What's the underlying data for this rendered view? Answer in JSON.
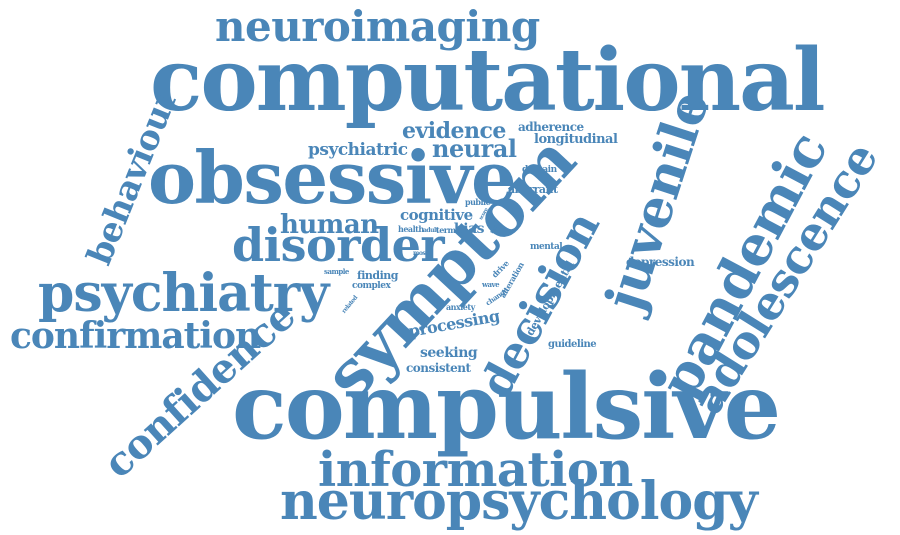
{
  "words": [
    {
      "name": "word-neuroimaging",
      "text": "neuroimaging",
      "color": "#4a86b8"
    },
    {
      "name": "word-computational",
      "text": "computational",
      "color": "#4a86b8"
    },
    {
      "name": "word-behaviour",
      "text": "behaviour",
      "color": "#4a86b8"
    },
    {
      "name": "word-obsessive",
      "text": "obsessive",
      "color": "#4a86b8"
    },
    {
      "name": "word-evidence",
      "text": "evidence",
      "color": "#4a86b8"
    },
    {
      "name": "word-adherence",
      "text": "adherence",
      "color": "#4a86b8"
    },
    {
      "name": "word-longitudinal",
      "text": "longitudinal",
      "color": "#4a86b8"
    },
    {
      "name": "word-psychiatric",
      "text": "psychiatric",
      "color": "#4a86b8"
    },
    {
      "name": "word-neural",
      "text": "neural",
      "color": "#4a86b8"
    },
    {
      "name": "word-domain",
      "text": "domain",
      "color": "#4a86b8"
    },
    {
      "name": "word-aberrant",
      "text": "aberrant",
      "color": "#4a86b8"
    },
    {
      "name": "word-public",
      "text": "public",
      "color": "#4a86b8"
    },
    {
      "name": "word-juvenile",
      "text": "juvenile",
      "color": "#4a86b8"
    },
    {
      "name": "word-symptom",
      "text": "symptom",
      "color": "#4a86b8"
    },
    {
      "name": "word-human",
      "text": "human",
      "color": "#4a86b8"
    },
    {
      "name": "word-cognitive",
      "text": "cognitive",
      "color": "#4a86b8"
    },
    {
      "name": "word-health",
      "text": "health",
      "color": "#4a86b8"
    },
    {
      "name": "word-adult",
      "text": "adult",
      "color": "#4a86b8"
    },
    {
      "name": "word-term",
      "text": "term",
      "color": "#4a86b8"
    },
    {
      "name": "word-bias",
      "text": "bias",
      "color": "#4a86b8"
    },
    {
      "name": "word-disorder",
      "text": "disorder",
      "color": "#4a86b8"
    },
    {
      "name": "word-most",
      "text": "most",
      "color": "#4a86b8"
    },
    {
      "name": "word-mental",
      "text": "mental",
      "color": "#4a86b8"
    },
    {
      "name": "word-pandemic",
      "text": "pandemic",
      "color": "#4a86b8"
    },
    {
      "name": "word-adolescence",
      "text": "adolescence",
      "color": "#4a86b8"
    },
    {
      "name": "word-depression",
      "text": "depression",
      "color": "#4a86b8"
    },
    {
      "name": "word-psychiatry",
      "text": "psychiatry",
      "color": "#4a86b8"
    },
    {
      "name": "word-sample",
      "text": "sample",
      "color": "#4a86b8"
    },
    {
      "name": "word-finding",
      "text": "finding",
      "color": "#4a86b8"
    },
    {
      "name": "word-complex",
      "text": "complex",
      "color": "#4a86b8"
    },
    {
      "name": "word-wave",
      "text": "wave",
      "color": "#4a86b8"
    },
    {
      "name": "word-drive",
      "text": "drive",
      "color": "#4a86b8"
    },
    {
      "name": "word-alteration",
      "text": "alteration",
      "color": "#4a86b8"
    },
    {
      "name": "word-decision",
      "text": "decision",
      "color": "#4a86b8"
    },
    {
      "name": "word-developmental",
      "text": "developmental",
      "color": "#4a86b8"
    },
    {
      "name": "word-related",
      "text": "related",
      "color": "#4a86b8"
    },
    {
      "name": "word-anxiety",
      "text": "anxiety",
      "color": "#4a86b8"
    },
    {
      "name": "word-change",
      "text": "change",
      "color": "#4a86b8"
    },
    {
      "name": "word-confirmation",
      "text": "confirmation",
      "color": "#4a86b8"
    },
    {
      "name": "word-processing",
      "text": "processing",
      "color": "#4a86b8"
    },
    {
      "name": "word-guideline",
      "text": "guideline",
      "color": "#4a86b8"
    },
    {
      "name": "word-confidence",
      "text": "confidence",
      "color": "#4a86b8"
    },
    {
      "name": "word-seeking",
      "text": "seeking",
      "color": "#4a86b8"
    },
    {
      "name": "word-consistent",
      "text": "consistent",
      "color": "#4a86b8"
    },
    {
      "name": "word-compulsive",
      "text": "compulsive",
      "color": "#4a86b8"
    },
    {
      "name": "word-information",
      "text": "information",
      "color": "#4a86b8"
    },
    {
      "name": "word-neuropsychology",
      "text": "neuropsychology",
      "color": "#4a86b8"
    },
    {
      "name": "word-task",
      "text": "task",
      "color": "#4a86b8"
    },
    {
      "name": "word-score",
      "text": "score",
      "color": "#4a86b8"
    }
  ]
}
